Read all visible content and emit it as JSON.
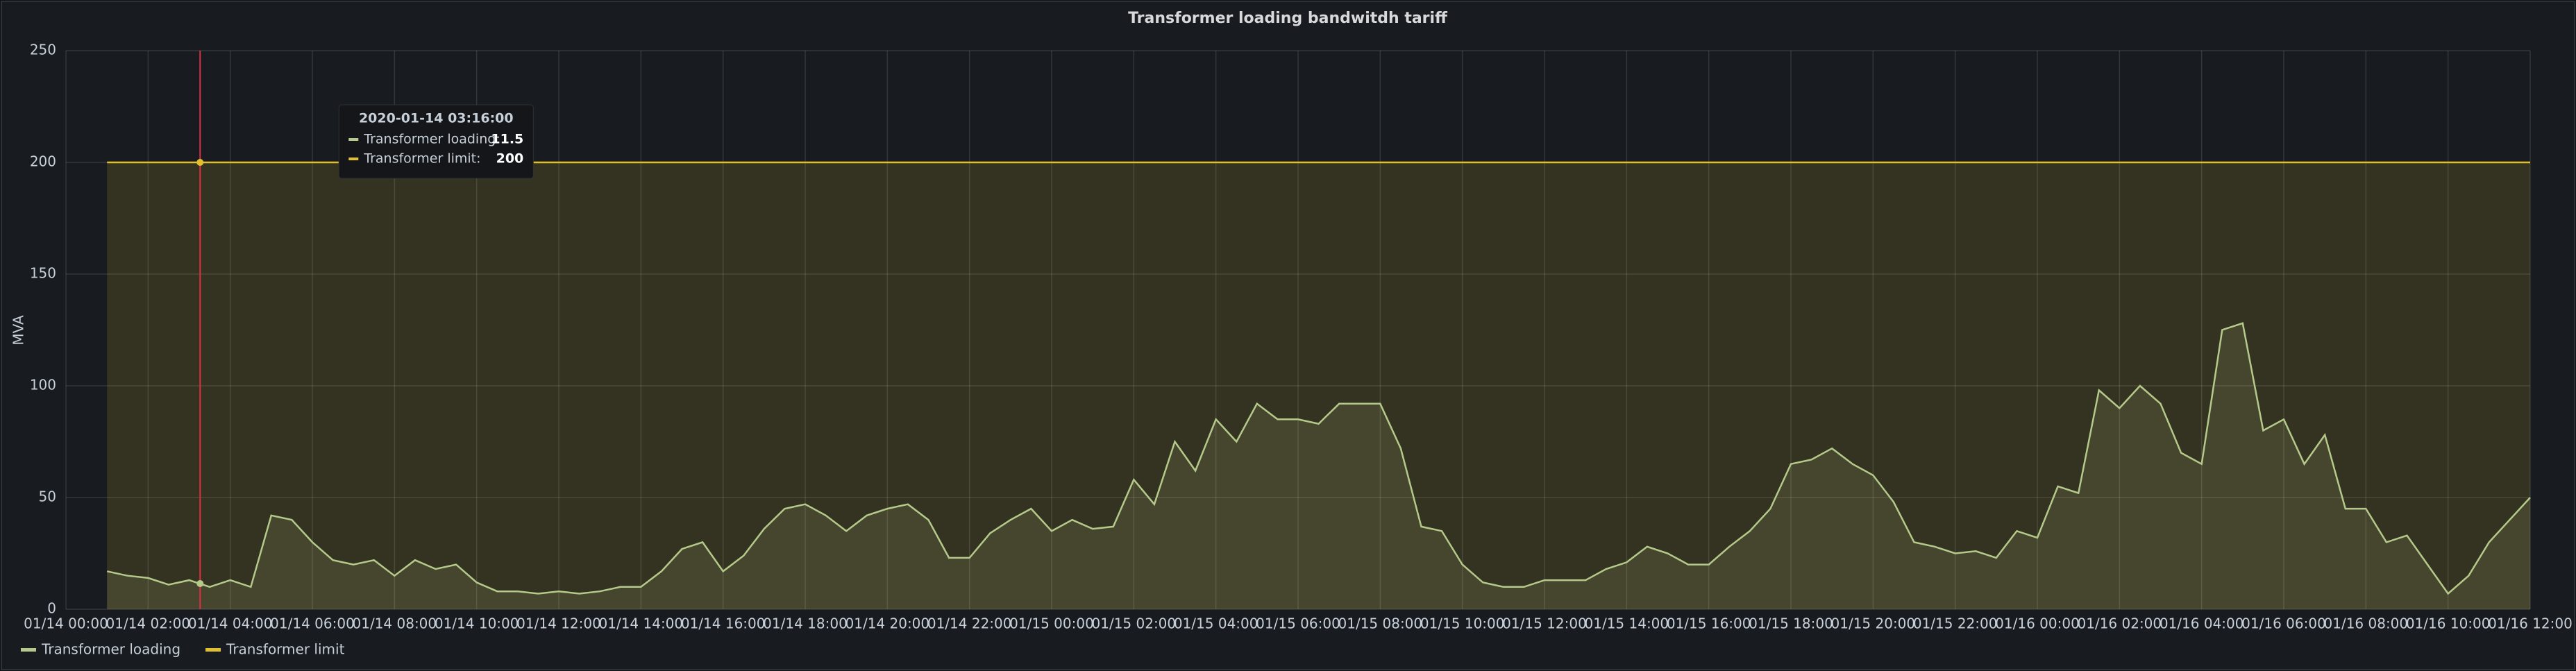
{
  "chart_data": {
    "type": "line",
    "title": "Transformer loading bandwitdh tariff",
    "y_label": "MVA",
    "xlim": [
      "01/14 00:00",
      "01/16 12:00"
    ],
    "xticks": [
      "01/14 00:00",
      "01/14 02:00",
      "01/14 04:00",
      "01/14 06:00",
      "01/14 08:00",
      "01/14 10:00",
      "01/14 12:00",
      "01/14 14:00",
      "01/14 16:00",
      "01/14 18:00",
      "01/14 20:00",
      "01/14 22:00",
      "01/15 00:00",
      "01/15 02:00",
      "01/15 04:00",
      "01/15 06:00",
      "01/15 08:00",
      "01/15 10:00",
      "01/15 12:00",
      "01/15 14:00",
      "01/15 16:00",
      "01/15 18:00",
      "01/15 20:00",
      "01/15 22:00",
      "01/16 00:00",
      "01/16 02:00",
      "01/16 04:00",
      "01/16 06:00",
      "01/16 08:00",
      "01/16 10:00",
      "01/16 12:00"
    ],
    "ylim": [
      0,
      250
    ],
    "yticks": [
      0,
      50,
      100,
      150,
      200,
      250
    ],
    "grid": true,
    "series": [
      {
        "name": "Transformer loading",
        "color": "#b5c98a",
        "x": [
          "01/14 01:00",
          "01/14 01:30",
          "01/14 02:00",
          "01/14 02:30",
          "01/14 03:00",
          "01/14 03:30",
          "01/14 04:00",
          "01/14 04:30",
          "01/14 05:00",
          "01/14 05:30",
          "01/14 06:00",
          "01/14 06:30",
          "01/14 07:00",
          "01/14 07:30",
          "01/14 08:00",
          "01/14 08:30",
          "01/14 09:00",
          "01/14 09:30",
          "01/14 10:00",
          "01/14 10:30",
          "01/14 11:00",
          "01/14 11:30",
          "01/14 12:00",
          "01/14 12:30",
          "01/14 13:00",
          "01/14 13:30",
          "01/14 14:00",
          "01/14 14:30",
          "01/14 15:00",
          "01/14 15:30",
          "01/14 16:00",
          "01/14 16:30",
          "01/14 17:00",
          "01/14 17:30",
          "01/14 18:00",
          "01/14 18:30",
          "01/14 19:00",
          "01/14 19:30",
          "01/14 20:00",
          "01/14 20:30",
          "01/14 21:00",
          "01/14 21:30",
          "01/14 22:00",
          "01/14 22:30",
          "01/14 23:00",
          "01/14 23:30",
          "01/15 00:00",
          "01/15 00:30",
          "01/15 01:00",
          "01/15 01:30",
          "01/15 02:00",
          "01/15 02:30",
          "01/15 03:00",
          "01/15 03:30",
          "01/15 04:00",
          "01/15 04:30",
          "01/15 05:00",
          "01/15 05:30",
          "01/15 06:00",
          "01/15 06:30",
          "01/15 07:00",
          "01/15 07:30",
          "01/15 08:00",
          "01/15 08:30",
          "01/15 09:00",
          "01/15 09:30",
          "01/15 10:00",
          "01/15 10:30",
          "01/15 11:00",
          "01/15 11:30",
          "01/15 12:00",
          "01/15 12:30",
          "01/15 13:00",
          "01/15 13:30",
          "01/15 14:00",
          "01/15 14:30",
          "01/15 15:00",
          "01/15 15:30",
          "01/15 16:00",
          "01/15 16:30",
          "01/15 17:00",
          "01/15 17:30",
          "01/15 18:00",
          "01/15 18:30",
          "01/15 19:00",
          "01/15 19:30",
          "01/15 20:00",
          "01/15 20:30",
          "01/15 21:00",
          "01/15 21:30",
          "01/15 22:00",
          "01/15 22:30",
          "01/15 23:00",
          "01/15 23:30",
          "01/16 00:00",
          "01/16 00:30",
          "01/16 01:00",
          "01/16 01:30",
          "01/16 02:00",
          "01/16 02:30",
          "01/16 03:00",
          "01/16 03:30",
          "01/16 04:00",
          "01/16 04:30",
          "01/16 05:00",
          "01/16 05:30",
          "01/16 06:00",
          "01/16 06:30",
          "01/16 07:00",
          "01/16 07:30",
          "01/16 08:00",
          "01/16 08:30",
          "01/16 09:00",
          "01/16 09:30",
          "01/16 10:00",
          "01/16 10:30",
          "01/16 11:00",
          "01/16 11:30",
          "01/16 12:00"
        ],
        "values": [
          17,
          15,
          14,
          11,
          13,
          10,
          13,
          10,
          42,
          40,
          30,
          22,
          20,
          22,
          15,
          22,
          18,
          20,
          12,
          8,
          8,
          7,
          8,
          7,
          8,
          10,
          10,
          17,
          27,
          30,
          17,
          24,
          36,
          45,
          47,
          42,
          35,
          42,
          45,
          47,
          40,
          23,
          23,
          34,
          40,
          45,
          35,
          40,
          36,
          37,
          58,
          47,
          75,
          62,
          85,
          75,
          92,
          85,
          85,
          83,
          92,
          92,
          92,
          72,
          37,
          35,
          20,
          12,
          10,
          10,
          13,
          13,
          13,
          18,
          21,
          28,
          25,
          20,
          20,
          28,
          35,
          45,
          65,
          67,
          72,
          65,
          60,
          48,
          30,
          28,
          25,
          26,
          23,
          35,
          32,
          55,
          52,
          98,
          90,
          100,
          92,
          70,
          65,
          125,
          128,
          80,
          85,
          65,
          78,
          45,
          45,
          30,
          33,
          20,
          7,
          15,
          30,
          40,
          50
        ]
      },
      {
        "name": "Transformer limit",
        "color": "#e0c030",
        "x": [
          "01/14 01:00",
          "01/16 12:00"
        ],
        "values": [
          200,
          200
        ]
      }
    ],
    "tooltip": {
      "time": "2020-01-14 03:16:00",
      "items": [
        {
          "label": "Transformer loading:",
          "value": 11.5
        },
        {
          "label": "Transformer limit:",
          "value": 200
        }
      ]
    }
  }
}
